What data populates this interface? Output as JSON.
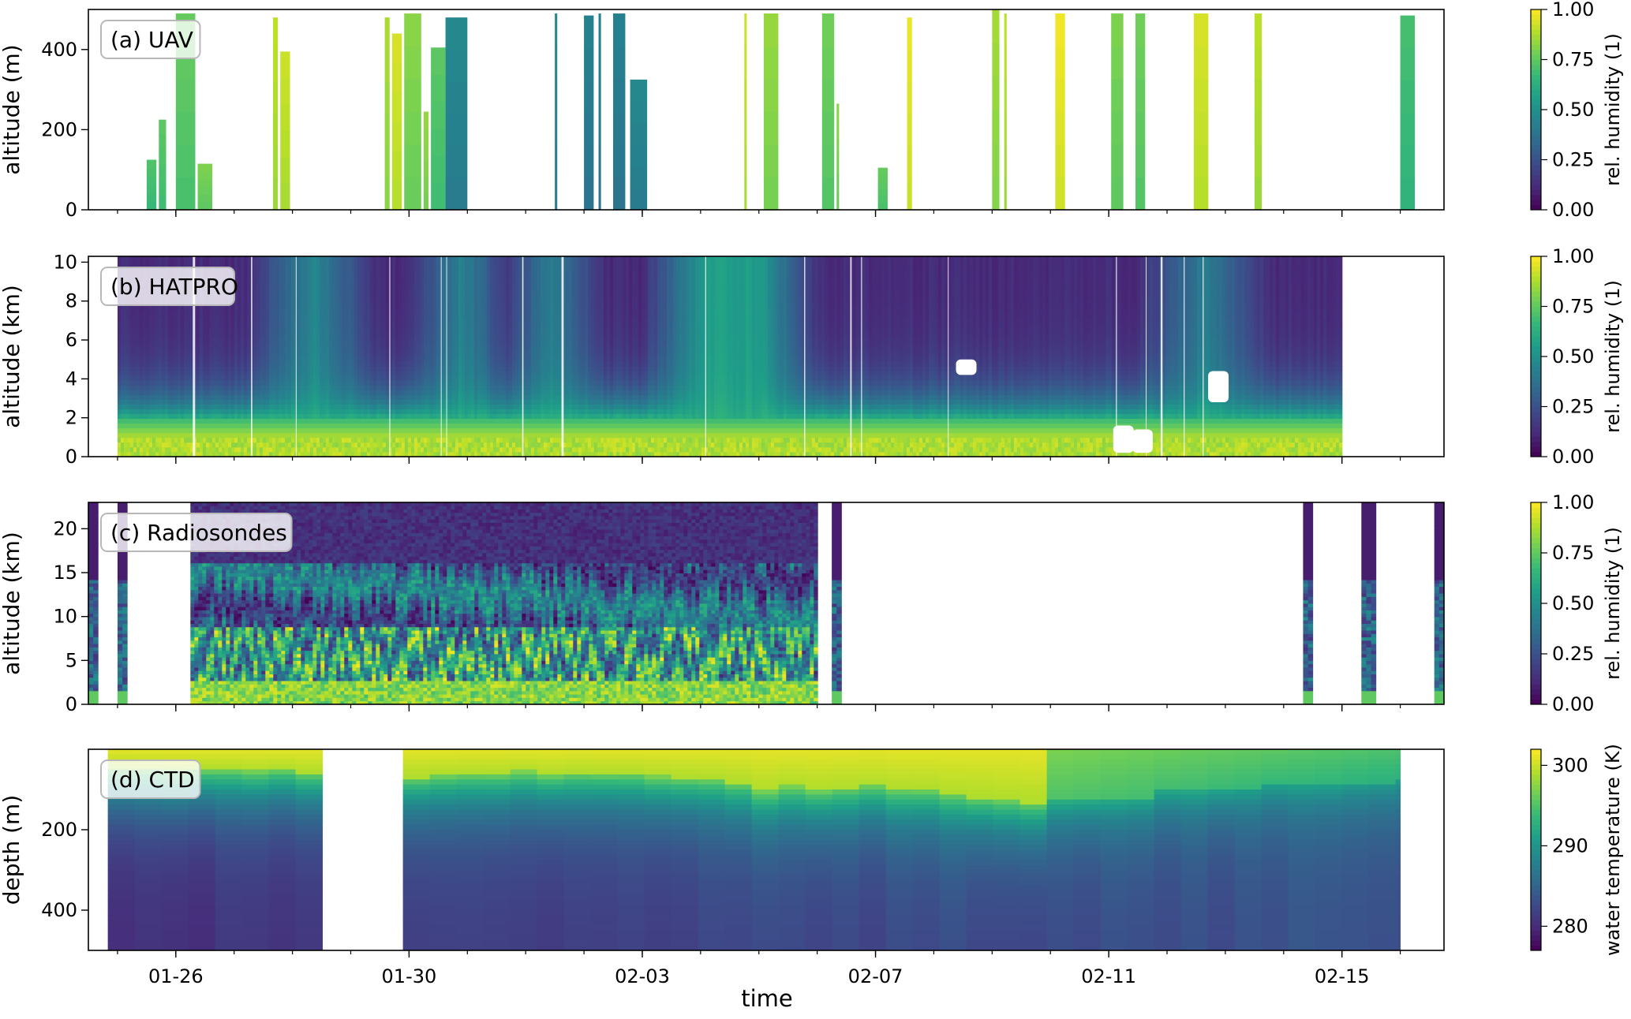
{
  "xlabel": "time",
  "chart_data": [
    {
      "type": "heatmap",
      "panel_label": "(a) UAV",
      "ylabel": "altitude (m)",
      "ylim": [
        0,
        500
      ],
      "yticks": [
        0,
        200,
        400
      ],
      "colorbar": {
        "label": "rel. humidity (1)",
        "range": [
          0,
          1
        ],
        "ticks": [
          "0.00",
          "0.25",
          "0.50",
          "0.75",
          "1.00"
        ]
      },
      "x_tick_labels": [
        "01-26",
        "01-30",
        "02-03",
        "02-07",
        "02-11",
        "02-15"
      ],
      "xlim": [
        "2020-01-24T12:00",
        "2020-02-16T18:00"
      ],
      "profiles": [
        {
          "start": "2020-01-25T12:00",
          "end": "2020-01-25T16:00",
          "top": 125,
          "rh": 0.7
        },
        {
          "start": "2020-01-25T17:00",
          "end": "2020-01-25T20:00",
          "top": 225,
          "rh": 0.72
        },
        {
          "start": "2020-01-26T00:00",
          "end": "2020-01-26T08:00",
          "top": 490,
          "rh": 0.74
        },
        {
          "start": "2020-01-26T09:00",
          "end": "2020-01-26T15:00",
          "top": 115,
          "rh": 0.78
        },
        {
          "start": "2020-01-27T16:00",
          "end": "2020-01-27T18:00",
          "top": 480,
          "rh": 0.88
        },
        {
          "start": "2020-01-27T19:00",
          "end": "2020-01-27T23:00",
          "top": 395,
          "rh": 0.9
        },
        {
          "start": "2020-01-29T14:00",
          "end": "2020-01-29T16:00",
          "top": 480,
          "rh": 0.85
        },
        {
          "start": "2020-01-29T17:00",
          "end": "2020-01-29T21:00",
          "top": 440,
          "rh": 0.92
        },
        {
          "start": "2020-01-29T22:00",
          "end": "2020-01-30T05:00",
          "top": 490,
          "rh": 0.8
        },
        {
          "start": "2020-01-30T06:00",
          "end": "2020-01-30T08:00",
          "top": 245,
          "rh": 0.82
        },
        {
          "start": "2020-01-30T09:00",
          "end": "2020-01-30T15:00",
          "top": 405,
          "rh": 0.72
        },
        {
          "start": "2020-01-30T15:00",
          "end": "2020-01-31T00:00",
          "top": 480,
          "rh": 0.45
        },
        {
          "start": "2020-02-01T12:00",
          "end": "2020-02-01T13:00",
          "top": 490,
          "rh": 0.45
        },
        {
          "start": "2020-02-02T00:00",
          "end": "2020-02-02T04:00",
          "top": 485,
          "rh": 0.42
        },
        {
          "start": "2020-02-02T06:00",
          "end": "2020-02-02T07:00",
          "top": 490,
          "rh": 0.42
        },
        {
          "start": "2020-02-02T12:00",
          "end": "2020-02-02T17:00",
          "top": 490,
          "rh": 0.42
        },
        {
          "start": "2020-02-02T19:00",
          "end": "2020-02-03T02:00",
          "top": 325,
          "rh": 0.45
        },
        {
          "start": "2020-02-04T18:00",
          "end": "2020-02-04T19:00",
          "top": 490,
          "rh": 0.9
        },
        {
          "start": "2020-02-05T02:00",
          "end": "2020-02-05T08:00",
          "top": 490,
          "rh": 0.82
        },
        {
          "start": "2020-02-06T02:00",
          "end": "2020-02-06T07:00",
          "top": 490,
          "rh": 0.76
        },
        {
          "start": "2020-02-06T08:00",
          "end": "2020-02-06T09:00",
          "top": 265,
          "rh": 0.8
        },
        {
          "start": "2020-02-07T01:00",
          "end": "2020-02-07T05:00",
          "top": 105,
          "rh": 0.74
        },
        {
          "start": "2020-02-07T13:00",
          "end": "2020-02-07T15:00",
          "top": 480,
          "rh": 0.95
        },
        {
          "start": "2020-02-09T00:00",
          "end": "2020-02-09T03:00",
          "top": 500,
          "rh": 0.84
        },
        {
          "start": "2020-02-09T05:00",
          "end": "2020-02-09T06:00",
          "top": 490,
          "rh": 0.88
        },
        {
          "start": "2020-02-10T02:00",
          "end": "2020-02-10T06:00",
          "top": 490,
          "rh": 0.96
        },
        {
          "start": "2020-02-11T01:00",
          "end": "2020-02-11T06:00",
          "top": 490,
          "rh": 0.78
        },
        {
          "start": "2020-02-11T11:00",
          "end": "2020-02-11T15:00",
          "top": 490,
          "rh": 0.76
        },
        {
          "start": "2020-02-12T11:00",
          "end": "2020-02-12T17:00",
          "top": 490,
          "rh": 0.92
        },
        {
          "start": "2020-02-13T12:00",
          "end": "2020-02-13T15:00",
          "top": 490,
          "rh": 0.88
        },
        {
          "start": "2020-02-16T00:00",
          "end": "2020-02-16T06:00",
          "top": 485,
          "rh": 0.68
        }
      ]
    },
    {
      "type": "heatmap",
      "panel_label": "(b) HATPRO",
      "ylabel": "altitude (km)",
      "ylim": [
        0,
        10.3
      ],
      "yticks": [
        0,
        2,
        4,
        6,
        8,
        10
      ],
      "colorbar": {
        "label": "rel. humidity (1)",
        "range": [
          0,
          1
        ],
        "ticks": [
          "0.00",
          "0.25",
          "0.50",
          "0.75",
          "1.00"
        ]
      },
      "x_tick_labels": [
        "01-26",
        "01-30",
        "02-03",
        "02-07",
        "02-11",
        "02-15"
      ],
      "xlim": [
        "2020-01-24T12:00",
        "2020-02-16T18:00"
      ],
      "data_start": "2020-01-25T00:00",
      "data_end": "2020-02-15T00:00",
      "moist_periods": [
        {
          "start": "2020-01-27T18:00",
          "end": "2020-01-28T22:00",
          "rh_upper": 0.45
        },
        {
          "start": "2020-01-30T12:00",
          "end": "2020-01-31T06:00",
          "rh_upper": 0.5
        },
        {
          "start": "2020-02-01T00:00",
          "end": "2020-02-01T20:00",
          "rh_upper": 0.45
        },
        {
          "start": "2020-02-03T12:00",
          "end": "2020-02-05T12:00",
          "rh_upper": 0.55
        },
        {
          "start": "2020-02-12T00:00",
          "end": "2020-02-13T06:00",
          "rh_upper": 0.4
        }
      ]
    },
    {
      "type": "heatmap",
      "panel_label": "(c) Radiosondes",
      "ylabel": "altitude (km)",
      "ylim": [
        0,
        23
      ],
      "yticks": [
        0,
        5,
        10,
        15,
        20
      ],
      "colorbar": {
        "label": "rel. humidity (1)",
        "range": [
          0,
          1
        ],
        "ticks": [
          "0.00",
          "0.25",
          "0.50",
          "0.75",
          "1.00"
        ]
      },
      "x_tick_labels": [
        "01-26",
        "01-30",
        "02-03",
        "02-07",
        "02-11",
        "02-15"
      ],
      "xlim": [
        "2020-01-24T12:00",
        "2020-02-16T18:00"
      ],
      "segments": [
        {
          "start": "2020-01-24T12:00",
          "end": "2020-01-24T16:00"
        },
        {
          "start": "2020-01-25T00:00",
          "end": "2020-01-25T04:00"
        },
        {
          "start": "2020-01-26T06:00",
          "end": "2020-02-06T00:00"
        },
        {
          "start": "2020-02-06T06:00",
          "end": "2020-02-06T10:00"
        },
        {
          "start": "2020-02-14T08:00",
          "end": "2020-02-14T12:00"
        },
        {
          "start": "2020-02-15T08:00",
          "end": "2020-02-15T12:00"
        },
        {
          "start": "2020-02-16T14:00",
          "end": "2020-02-16T18:00"
        }
      ]
    },
    {
      "type": "heatmap",
      "panel_label": "(d) CTD",
      "ylabel": "depth (m)",
      "ylim": [
        500,
        0
      ],
      "yticks": [
        200,
        400
      ],
      "colorbar": {
        "label": "water temperature (K)",
        "range": [
          277,
          302
        ],
        "ticks": [
          "280",
          "290",
          "300"
        ]
      },
      "x_tick_labels": [
        "01-26",
        "01-30",
        "02-03",
        "02-07",
        "02-11",
        "02-15"
      ],
      "xlim": [
        "2020-01-24T12:00",
        "2020-02-16T18:00"
      ],
      "data_start": "2020-01-24T20:00",
      "data_end": "2020-02-16T00:00",
      "gap": {
        "start": "2020-01-28T22:00",
        "end": "2020-01-29T11:00"
      },
      "mixed_layer_depth": [
        {
          "time": "2020-01-25T00:00",
          "depth": 50
        },
        {
          "time": "2020-01-28T00:00",
          "depth": 55
        },
        {
          "time": "2020-01-30T00:00",
          "depth": 65
        },
        {
          "time": "2020-02-03T00:00",
          "depth": 60
        },
        {
          "time": "2020-02-05T00:00",
          "depth": 100
        },
        {
          "time": "2020-02-07T00:00",
          "depth": 90
        },
        {
          "time": "2020-02-09T00:00",
          "depth": 130
        },
        {
          "time": "2020-02-11T00:00",
          "depth": 120
        },
        {
          "time": "2020-02-12T12:00",
          "depth": 90
        },
        {
          "time": "2020-02-16T00:00",
          "depth": 80
        }
      ]
    }
  ]
}
